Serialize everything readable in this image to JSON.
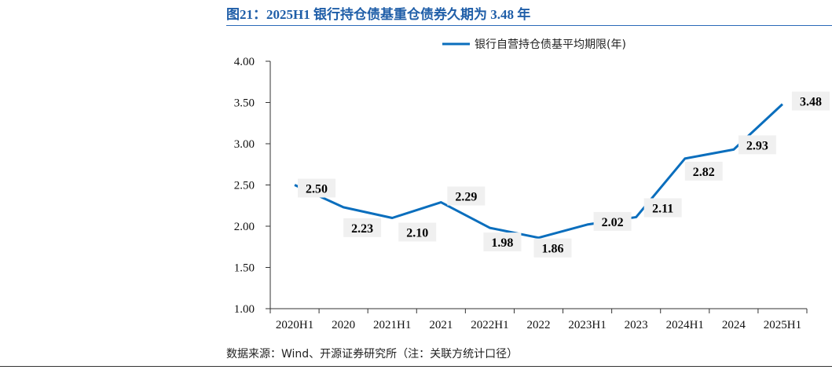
{
  "figure": {
    "title": "图21：2025H1 银行持仓债基重仓债券久期为 3.48 年",
    "source": "数据来源：Wind、开源证券研究所（注：关联方统计口径）"
  },
  "colors": {
    "line": "#0a6ebd",
    "title": "#1f5ea8",
    "label_bg": "#f0f0f0"
  },
  "chart_data": {
    "type": "line",
    "title": "",
    "xlabel": "",
    "ylabel": "",
    "categories": [
      "2020H1",
      "2020",
      "2021H1",
      "2021",
      "2022H1",
      "2022",
      "2023H1",
      "2023",
      "2024H1",
      "2024",
      "2025H1"
    ],
    "series": [
      {
        "name": "银行自营持仓债基平均期限(年)",
        "values": [
          2.5,
          2.23,
          2.1,
          2.29,
          1.98,
          1.86,
          2.02,
          2.11,
          2.82,
          2.93,
          3.48
        ],
        "labels": [
          "2.50",
          "2.23",
          "2.10",
          "2.29",
          "1.98",
          "1.86",
          "2.02",
          "2.11",
          "2.82",
          "2.93",
          "3.48"
        ]
      }
    ],
    "ylim": [
      1.0,
      4.0
    ],
    "yticks": [
      "1.00",
      "1.50",
      "2.00",
      "2.50",
      "3.00",
      "3.50",
      "4.00"
    ],
    "ytick_values": [
      1.0,
      1.5,
      2.0,
      2.5,
      3.0,
      3.5,
      4.0
    ],
    "grid": false,
    "legend_position": "top-right"
  }
}
